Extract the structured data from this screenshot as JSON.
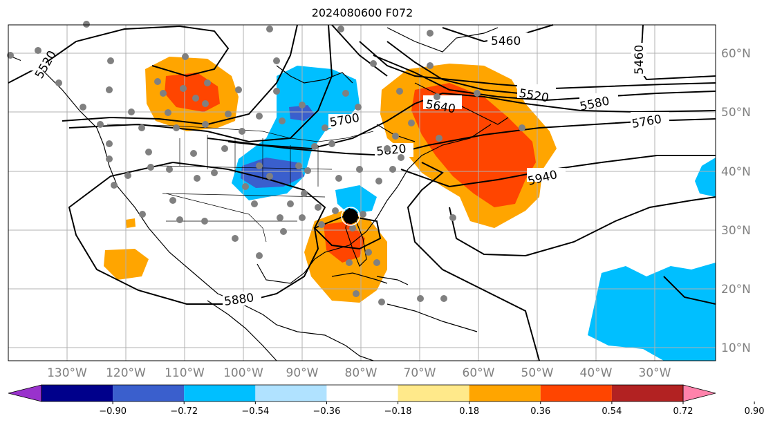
{
  "title": "2024080600 F072",
  "lat_labels": [
    "10°N",
    "20°N",
    "30°N",
    "40°N",
    "50°N",
    "60°N"
  ],
  "lon_labels": [
    "130°W",
    "120°W",
    "110°W",
    "100°W",
    "90°W",
    "80°W",
    "70°W",
    "60°W",
    "50°W",
    "40°W",
    "30°W"
  ],
  "contour_labels": [
    "5460",
    "5460",
    "5520",
    "5580",
    "5640",
    "5700",
    "5760",
    "5820",
    "5880",
    "5940",
    "5520"
  ],
  "colorbar": {
    "ticks": [
      "−0.90",
      "−0.72",
      "−0.54",
      "−0.36",
      "−0.18",
      "0.18",
      "0.36",
      "0.54",
      "0.72",
      "0.90"
    ],
    "colors": [
      "#9932cc",
      "#00008b",
      "#3a5fcd",
      "#00bfff",
      "#b0e2ff",
      "#ffffff",
      "#ffe98a",
      "#ffa500",
      "#ff4500",
      "#b22222",
      "#ff82ab"
    ],
    "under_color": "#9932cc",
    "over_color": "#ff82ab"
  },
  "colors": {
    "gridline": "#b0b0b0",
    "coastline": "#000000",
    "station_dot": "#808080",
    "storm_marker": "#000000"
  }
}
